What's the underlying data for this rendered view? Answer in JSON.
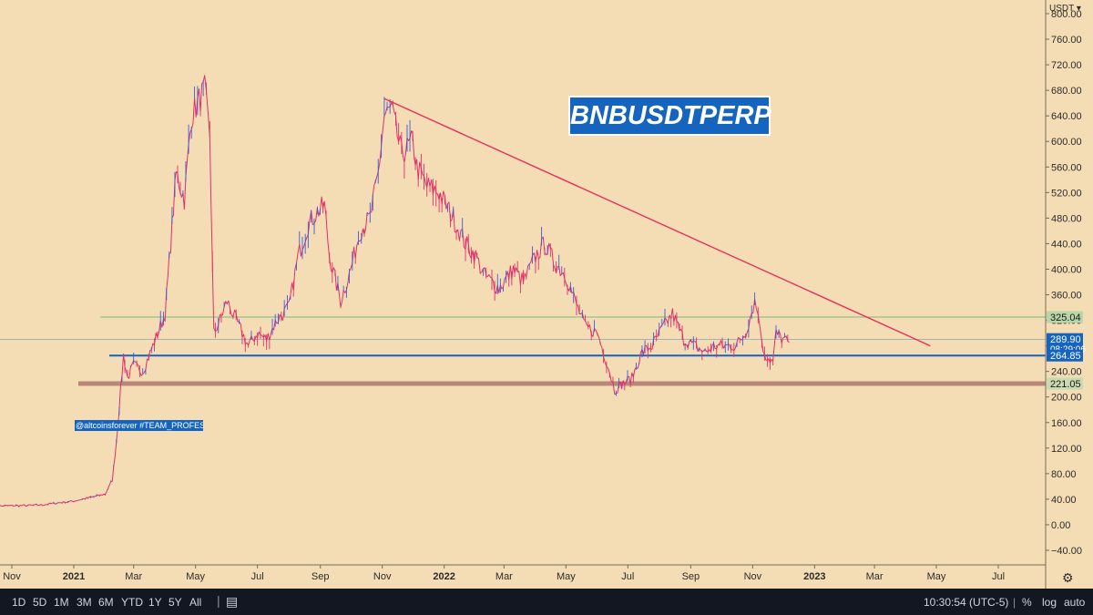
{
  "currency_label": "USDT",
  "bottom_bar": {
    "intervals": [
      "1D",
      "5D",
      "1M",
      "3M",
      "6M",
      "YTD",
      "1Y",
      "5Y",
      "All"
    ],
    "time": "10:30:54 (UTC-5)",
    "percent": "%",
    "log": "log",
    "auto": "auto"
  },
  "colors": {
    "background": "#f4ddb4",
    "candle_up": "#3b5bdb",
    "candle_down": "#e0306a",
    "trendline": "#e8305a",
    "support_blue": "#1565c0",
    "support_brown": "#b9877a",
    "resistance_green": "#6fbf73"
  },
  "chart_data": {
    "type": "line",
    "title": "BNBUSDTPERP",
    "watermark": "@altcoinsforever #TEAM_PROFESSOR",
    "y_ticks": [
      "800.00",
      "760.00",
      "720.00",
      "680.00",
      "640.00",
      "600.00",
      "560.00",
      "520.00",
      "480.00",
      "440.00",
      "400.00",
      "360.00",
      "320.00",
      "280.00",
      "240.00",
      "200.00",
      "160.00",
      "120.00",
      "80.00",
      "40.00",
      "0.00",
      "−40.00"
    ],
    "y_tick_values": [
      800,
      760,
      720,
      680,
      640,
      600,
      560,
      520,
      480,
      440,
      400,
      360,
      320,
      280,
      240,
      200,
      160,
      120,
      80,
      40,
      0,
      -40
    ],
    "ylim": [
      -55,
      815
    ],
    "x_ticks": [
      "Nov",
      "2021",
      "Mar",
      "May",
      "Jul",
      "Sep",
      "Nov",
      "2022",
      "Mar",
      "May",
      "Jul",
      "Sep",
      "Nov",
      "2023",
      "Mar",
      "May",
      "Jul"
    ],
    "x_tick_dates": [
      "2020-11-01",
      "2021-01-01",
      "2021-03-01",
      "2021-05-01",
      "2021-07-01",
      "2021-09-01",
      "2021-11-01",
      "2022-01-01",
      "2022-03-01",
      "2022-05-01",
      "2022-07-01",
      "2022-09-01",
      "2022-11-01",
      "2023-01-01",
      "2023-03-01",
      "2023-05-01",
      "2023-07-01"
    ],
    "series": [
      {
        "x": [
          "2020-10-15",
          "2020-11-01",
          "2020-11-15",
          "2020-12-01",
          "2020-12-15",
          "2021-01-01",
          "2021-01-15",
          "2021-02-01",
          "2021-02-08",
          "2021-02-12",
          "2021-02-19",
          "2021-02-23",
          "2021-03-01",
          "2021-03-10",
          "2021-03-20",
          "2021-04-01",
          "2021-04-12",
          "2021-04-20",
          "2021-04-27",
          "2021-05-03",
          "2021-05-10",
          "2021-05-15",
          "2021-05-19",
          "2021-05-25",
          "2021-06-01",
          "2021-06-10",
          "2021-06-22",
          "2021-07-01",
          "2021-07-10",
          "2021-07-20",
          "2021-08-01",
          "2021-08-10",
          "2021-08-20",
          "2021-08-29",
          "2021-09-05",
          "2021-09-10",
          "2021-09-21",
          "2021-10-01",
          "2021-10-10",
          "2021-10-20",
          "2021-10-28",
          "2021-11-03",
          "2021-11-10",
          "2021-11-20",
          "2021-12-01",
          "2021-12-05",
          "2021-12-15",
          "2021-12-27",
          "2022-01-10",
          "2022-01-22",
          "2022-02-01",
          "2022-02-10",
          "2022-02-24",
          "2022-03-10",
          "2022-03-20",
          "2022-04-01",
          "2022-04-10",
          "2022-04-20",
          "2022-05-01",
          "2022-05-10",
          "2022-05-20",
          "2022-06-01",
          "2022-06-13",
          "2022-06-18",
          "2022-06-25",
          "2022-07-05",
          "2022-07-15",
          "2022-07-25",
          "2022-08-05",
          "2022-08-14",
          "2022-08-25",
          "2022-09-05",
          "2022-09-15",
          "2022-09-25",
          "2022-10-05",
          "2022-10-15",
          "2022-10-25",
          "2022-11-03",
          "2022-11-08",
          "2022-11-10",
          "2022-11-14",
          "2022-11-21",
          "2022-11-24",
          "2022-12-01",
          "2022-12-07"
        ],
        "y": [
          29,
          30,
          30,
          31,
          34,
          37,
          42,
          48,
          70,
          130,
          265,
          230,
          250,
          240,
          280,
          330,
          550,
          510,
          640,
          660,
          680,
          610,
          300,
          320,
          350,
          320,
          280,
          300,
          290,
          320,
          340,
          420,
          470,
          490,
          500,
          420,
          350,
          400,
          460,
          480,
          550,
          640,
          650,
          580,
          600,
          560,
          530,
          520,
          480,
          440,
          420,
          390,
          370,
          400,
          380,
          420,
          440,
          410,
          390,
          350,
          310,
          300,
          240,
          210,
          220,
          230,
          270,
          280,
          310,
          330,
          290,
          280,
          270,
          280,
          280,
          280,
          300,
          350,
          320,
          280,
          265,
          255,
          300,
          290,
          285
        ]
      }
    ],
    "lines": [
      {
        "label": "325.04",
        "value": 325.04,
        "kind": "horizontal"
      },
      {
        "label": "289.90",
        "value": 289.9,
        "kind": "last-price",
        "countdown": "08:29:06"
      },
      {
        "label": "264.85",
        "value": 264.85,
        "kind": "horizontal"
      },
      {
        "label": "221.05",
        "value": 221.05,
        "kind": "horizontal"
      }
    ],
    "trendline": {
      "from": {
        "x": "2021-11-03",
        "y": 667
      },
      "to": {
        "x": "2023-04-25",
        "y": 280
      }
    },
    "grid": false,
    "xlabel": "",
    "ylabel": ""
  }
}
